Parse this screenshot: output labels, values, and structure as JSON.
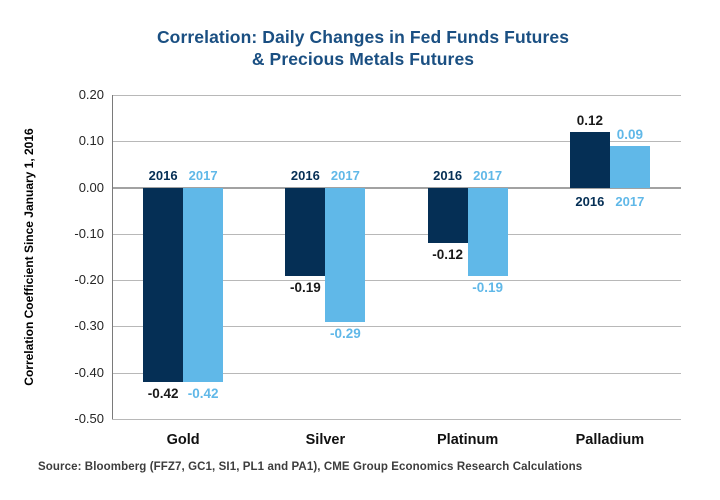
{
  "page": {
    "title_line1": "Correlation: Daily Changes in Fed Funds Futures",
    "title_line2": "& Precious Metals Futures",
    "source": "Source: Bloomberg (FFZ7, GC1, SI1, PL1 and PA1), CME Group Economics Research Calculations"
  },
  "colors": {
    "navy": "#052f55",
    "light_blue": "#60b8e8",
    "title_blue": "#1a4f82",
    "grid": "#b8b8b8",
    "zero_line": "#a2a2a2",
    "axis_line": "#7a7a7a",
    "dark_text": "#1a1a1a",
    "source_text": "#3d3d3d"
  },
  "chart_data": {
    "type": "bar",
    "title": "Correlation: Daily Changes in Fed Funds Futures & Precious Metals Futures",
    "xlabel": "",
    "ylabel": "Correlation Coefficient Since January 1, 2016",
    "categories": [
      "Gold",
      "Silver",
      "Platinum",
      "Palladium"
    ],
    "series": [
      {
        "name": "2016",
        "color": "#052f55",
        "values": [
          -0.42,
          -0.19,
          -0.12,
          0.12
        ],
        "value_labels": [
          "-0.42",
          "-0.19",
          "-0.12",
          "0.12"
        ]
      },
      {
        "name": "2017",
        "color": "#60b8e8",
        "values": [
          -0.42,
          -0.29,
          -0.19,
          0.09
        ],
        "value_labels": [
          "-0.42",
          "-0.29",
          "-0.19",
          "0.09"
        ]
      }
    ],
    "ylim": [
      -0.5,
      0.2
    ],
    "y_ticks": [
      "0.20",
      "0.10",
      "0.00",
      "-0.10",
      "-0.20",
      "-0.30",
      "-0.40",
      "-0.50"
    ],
    "grid": true,
    "legend_position": "series-year labels at zero line of each group"
  }
}
